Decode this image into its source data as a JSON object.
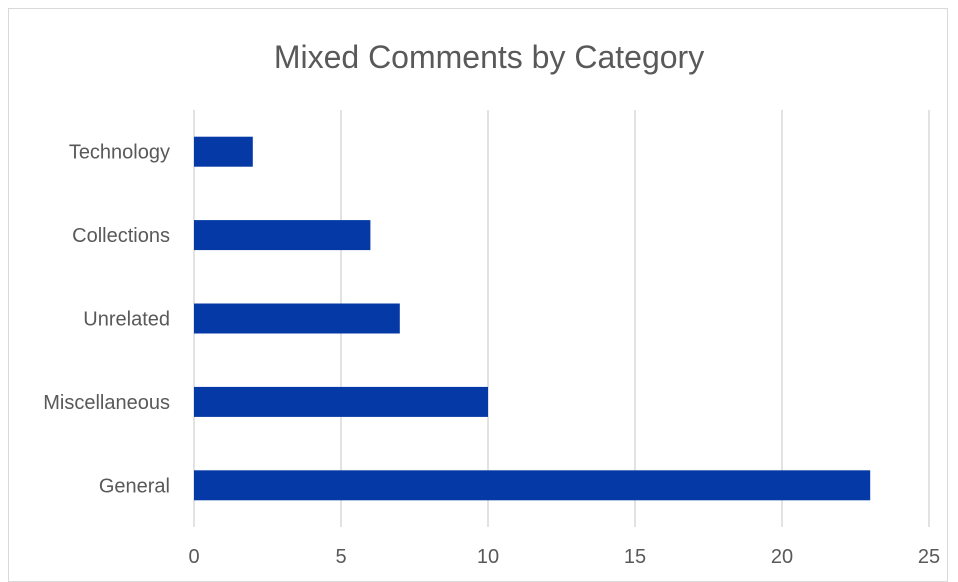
{
  "chart_data": {
    "type": "bar",
    "orientation": "horizontal",
    "title": "Mixed Comments by Category",
    "xlabel": "",
    "ylabel": "",
    "categories": [
      "General",
      "Miscellaneous",
      "Unrelated",
      "Collections",
      "Technology"
    ],
    "values": [
      23,
      10,
      7,
      6,
      2
    ],
    "xlim": [
      0,
      25
    ],
    "xticks": [
      "0",
      "5",
      "10",
      "15",
      "20",
      "25"
    ],
    "grid": "vertical",
    "legend": "none",
    "bar_color": "#0439a6"
  }
}
